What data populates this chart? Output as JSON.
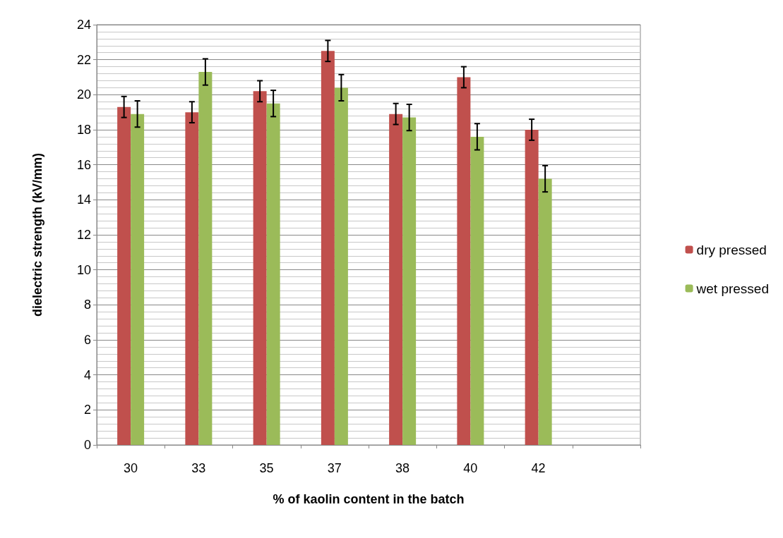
{
  "chart_data": {
    "type": "bar",
    "xlabel": "% of kaolin content in the batch",
    "ylabel": "dielectric strength (kV/mm)",
    "categories": [
      "30",
      "33",
      "35",
      "37",
      "38",
      "40",
      "42",
      null
    ],
    "series": [
      {
        "name": "dry pressed",
        "color": "#c0504d",
        "values": [
          19.3,
          19.0,
          20.2,
          22.5,
          18.9,
          21.0,
          18.0,
          null
        ],
        "errors": [
          0.6,
          0.6,
          0.6,
          0.6,
          0.6,
          0.6,
          0.6,
          null
        ]
      },
      {
        "name": "wet pressed",
        "color": "#9bbb59",
        "values": [
          18.9,
          21.3,
          19.5,
          20.4,
          18.7,
          17.6,
          15.2,
          null
        ],
        "errors": [
          0.75,
          0.75,
          0.75,
          0.75,
          0.75,
          0.75,
          0.75,
          null
        ]
      }
    ],
    "ylim": [
      0,
      24
    ],
    "yticks": [
      0,
      2,
      4,
      6,
      8,
      10,
      12,
      14,
      16,
      18,
      20,
      22,
      24
    ],
    "grid": "y",
    "legend": "right"
  }
}
